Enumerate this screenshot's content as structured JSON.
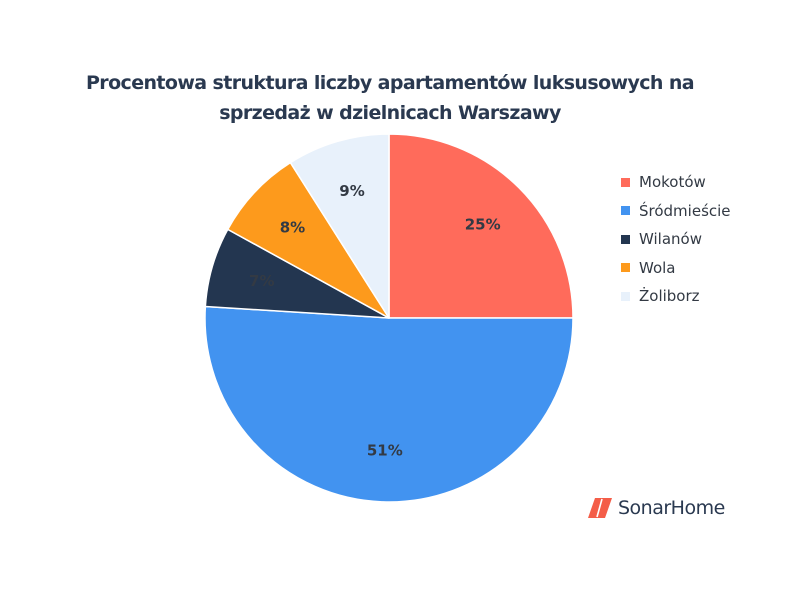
{
  "chart_data": {
    "type": "pie",
    "title": "Procentowa struktura liczby apartamentów luksusowych na sprzedaż w dzielnicach Warszawy",
    "title_lines": [
      "Procentowa struktura liczby apartamentów luksusowych na",
      "sprzedaż w dzielnicach Warszawy"
    ],
    "slices": [
      {
        "label": "Mokotów",
        "value": 25,
        "data_label": "25%",
        "color": "#ff6b5b"
      },
      {
        "label": "Śródmieście",
        "value": 51,
        "data_label": "51%",
        "color": "#4293f0"
      },
      {
        "label": "Wilanów",
        "value": 7,
        "data_label": "7%",
        "color": "#233650"
      },
      {
        "label": "Wola",
        "value": 8,
        "data_label": "8%",
        "color": "#fd9a1c"
      },
      {
        "label": "Żoliborz",
        "value": 9,
        "data_label": "9%",
        "color": "#e8f1fb"
      }
    ],
    "start": "12 o'clock",
    "direction": "clockwise",
    "legend_position": "right",
    "data_label_color": "#333a44"
  },
  "brand": {
    "name": "SonarHome",
    "icon": "sonarhome-logo-icon",
    "icon_color": "#f45d48",
    "text_color": "#2a3950"
  }
}
